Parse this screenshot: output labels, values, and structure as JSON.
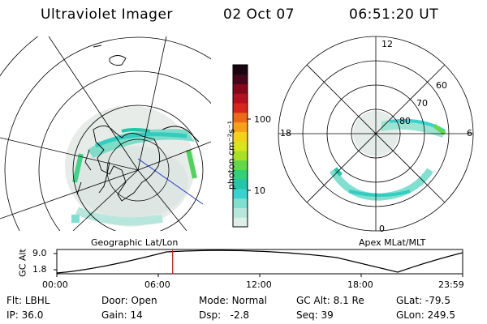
{
  "header": {
    "title": "Ultraviolet Imager",
    "date": "02 Oct 07",
    "time": "06:51:20 UT"
  },
  "left_panel": {
    "caption": "Geographic Lat/Lon"
  },
  "right_panel": {
    "caption": "Apex MLat/MLT",
    "mlt_labels": [
      "12",
      "18",
      "6",
      "0"
    ],
    "lat_labels": [
      "60",
      "70",
      "80"
    ]
  },
  "colorbar": {
    "unit_label": "photon cm⁻²s⁻¹",
    "tick_labels": [
      "100",
      "10"
    ],
    "colors": [
      "#dcefe8",
      "#b7e6dc",
      "#7fe0cf",
      "#39d3cf",
      "#21c7a8",
      "#32d07a",
      "#63d84a",
      "#a9e024",
      "#d8e61a",
      "#f4d21a",
      "#f6a116",
      "#ee6a16",
      "#d8261c",
      "#b5101e",
      "#84081c",
      "#45051a",
      "#190512"
    ]
  },
  "timeline": {
    "y_label": "GC Alt",
    "y_ticks": [
      "9.0",
      "1.8"
    ],
    "x_ticks": [
      "00:00",
      "06:00",
      "12:00",
      "18:00",
      "23:59"
    ],
    "current_time": "06:51",
    "marker_color": "#d01010"
  },
  "info": [
    {
      "label": "Flt:",
      "value": "LBHL"
    },
    {
      "label": "Door:",
      "value": "Open"
    },
    {
      "label": "Mode:",
      "value": "Normal"
    },
    {
      "label": "GC Alt:",
      "value": "8.1 Re"
    },
    {
      "label": "GLat:",
      "value": "-79.5"
    },
    {
      "label": "IP:",
      "value": "36.0"
    },
    {
      "label": "Gain:",
      "value": "14"
    },
    {
      "label": "Dsp:",
      "value": "-2.8"
    },
    {
      "label": "Seq:",
      "value": "39"
    },
    {
      "label": "GLon:",
      "value": "249.5"
    }
  ]
}
